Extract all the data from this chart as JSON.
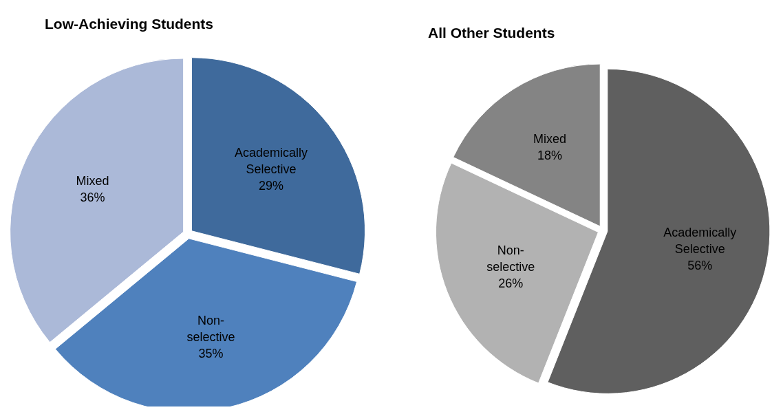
{
  "chart_data": [
    {
      "type": "pie",
      "title": "Low-Achieving Students",
      "categories": [
        "Academically Selective",
        "Non-selective",
        "Mixed"
      ],
      "values": [
        29,
        35,
        36
      ],
      "colors": [
        "#3f6a9c",
        "#4f81bd",
        "#abb9d8"
      ],
      "value_labels": [
        "29%",
        "35%",
        "36%"
      ]
    },
    {
      "type": "pie",
      "title": "All Other Students",
      "categories": [
        "Academically Selective",
        "Non-selective",
        "Mixed"
      ],
      "values": [
        56,
        26,
        18
      ],
      "colors": [
        "#5f5f5f",
        "#b2b2b2",
        "#848484"
      ],
      "value_labels": [
        "56%",
        "26%",
        "18%"
      ]
    }
  ]
}
